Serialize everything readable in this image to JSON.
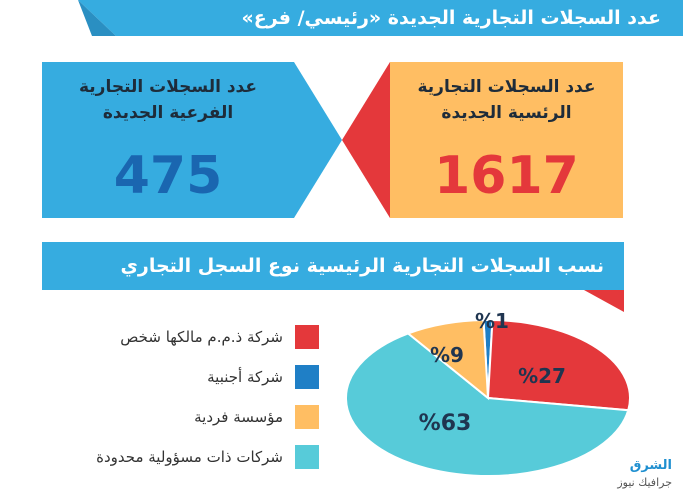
{
  "header": {
    "title": "عدد السجلات التجارية الجديدة «رئيسي/ فرع»"
  },
  "stats": {
    "branch": {
      "label_line1": "عدد السجلات التجارية",
      "label_line2": "الفرعية الجديدة",
      "value": "475"
    },
    "main": {
      "label_line1": "عدد السجلات التجارية",
      "label_line2": "الرئسية الجديدة",
      "value": "1617"
    }
  },
  "subtitle": "نسب السجلات التجارية الرئيسية نوع السجل التجاري",
  "chart_data": {
    "type": "pie",
    "title": "نسب السجلات التجارية الرئيسية نوع السجل التجاري",
    "categories": [
      "شركة ذ.م.م مالكها شخص",
      "شركة أجنبية",
      "مؤسسة فردية",
      "شركات ذات مسؤولية محدودة"
    ],
    "values": [
      27,
      1,
      9,
      63
    ],
    "labels": [
      "%27",
      "%1",
      "%9",
      "%63"
    ],
    "colors": [
      "#e4383b",
      "#1f7fc6",
      "#ffbe63",
      "#57cbd9"
    ],
    "legend_position": "left"
  },
  "source": {
    "name": "الشرق",
    "sub": "جرافيك نيوز"
  },
  "colors": {
    "blue": "#36ace0",
    "orange": "#ffbe63",
    "red": "#e4383b",
    "dark_blue": "#1a66b0"
  }
}
